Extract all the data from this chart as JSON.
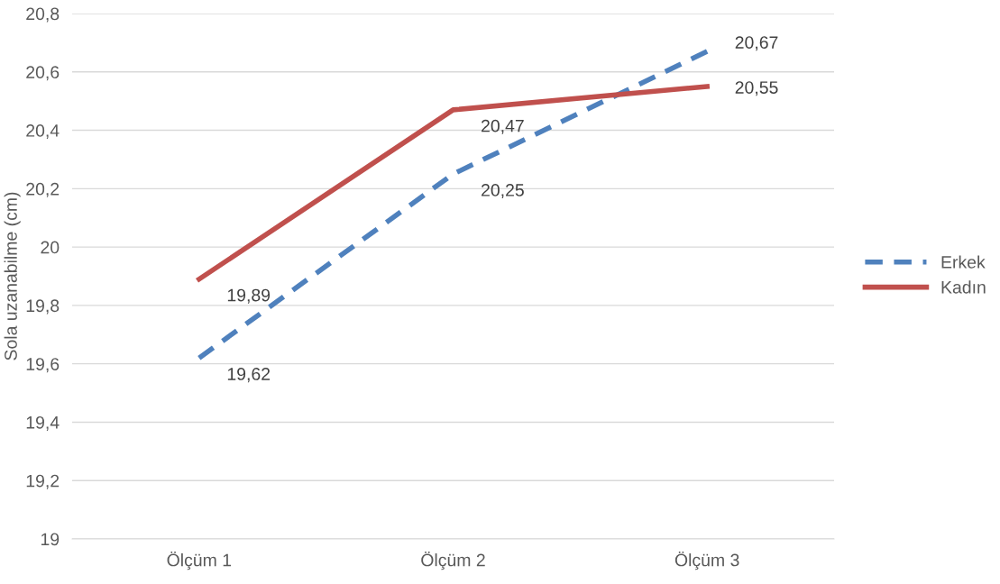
{
  "chart_data": {
    "type": "line",
    "ylabel": "Sola uzanabilme (cm)",
    "categories": [
      "Ölçüm 1",
      "Ölçüm 2",
      "Ölçüm 3"
    ],
    "series": [
      {
        "name": "Erkek",
        "color": "#4f81bd",
        "line_style": "dashed",
        "values": [
          19.62,
          20.25,
          20.67
        ],
        "value_labels": [
          "19,62",
          "20,25",
          "20,67"
        ]
      },
      {
        "name": "Kadın",
        "color": "#c0504d",
        "line_style": "solid",
        "values": [
          19.89,
          20.47,
          20.55
        ],
        "value_labels": [
          "19,89",
          "20,47",
          "20,55"
        ]
      }
    ],
    "ylim": [
      19,
      20.8
    ],
    "yticks": [
      19,
      {
        "value": 19.2,
        "label": "19,2"
      },
      {
        "value": 19.4,
        "label": "19,4"
      },
      {
        "value": 19.6,
        "label": "19,6"
      },
      {
        "value": 19.8,
        "label": "19,8"
      },
      20,
      {
        "value": 20.2,
        "label": "20,2"
      },
      {
        "value": 20.4,
        "label": "20,4"
      },
      {
        "value": 20.6,
        "label": "20,6"
      },
      {
        "value": 20.8,
        "label": "20,8"
      }
    ],
    "grid": "y",
    "legend": "right"
  }
}
